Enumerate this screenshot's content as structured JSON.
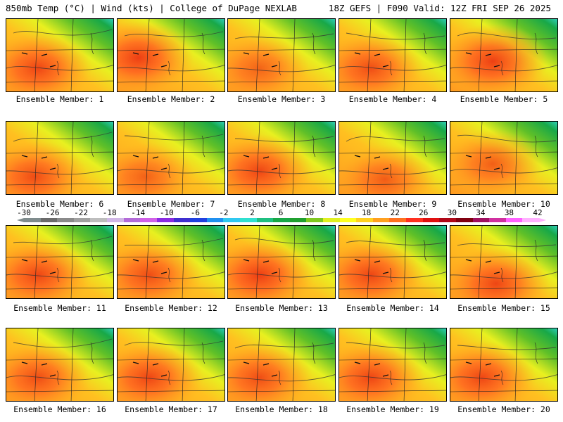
{
  "header": {
    "left": "850mb Temp (°C) | Wind (kts) | College of DuPage NEXLAB",
    "right": "18Z GEFS | F090 Valid: 12Z FRI SEP 26 2025"
  },
  "panels": [
    {
      "label": "Ensemble Member: 1",
      "hot": "west",
      "warmth": 0.75
    },
    {
      "label": "Ensemble Member: 2",
      "hot": "northwest",
      "warmth": 0.8
    },
    {
      "label": "Ensemble Member: 3",
      "hot": "west",
      "warmth": 0.55
    },
    {
      "label": "Ensemble Member: 4",
      "hot": "west",
      "warmth": 0.7
    },
    {
      "label": "Ensemble Member: 5",
      "hot": "center",
      "warmth": 0.8
    },
    {
      "label": "Ensemble Member: 6",
      "hot": "southwest",
      "warmth": 0.7
    },
    {
      "label": "Ensemble Member: 7",
      "hot": "southwest",
      "warmth": 0.55
    },
    {
      "label": "Ensemble Member: 8",
      "hot": "west",
      "warmth": 0.75
    },
    {
      "label": "Ensemble Member: 9",
      "hot": "south",
      "warmth": 0.6
    },
    {
      "label": "Ensemble Member: 10",
      "hot": "center",
      "warmth": 0.6
    },
    {
      "label": "Ensemble Member: 11",
      "hot": "west",
      "warmth": 0.75
    },
    {
      "label": "Ensemble Member: 12",
      "hot": "west",
      "warmth": 0.7
    },
    {
      "label": "Ensemble Member: 13",
      "hot": "west",
      "warmth": 0.8
    },
    {
      "label": "Ensemble Member: 14",
      "hot": "west",
      "warmth": 0.75
    },
    {
      "label": "Ensemble Member: 15",
      "hot": "south",
      "warmth": 0.75
    },
    {
      "label": "Ensemble Member: 16",
      "hot": "west",
      "warmth": 0.7
    },
    {
      "label": "Ensemble Member: 17",
      "hot": "west",
      "warmth": 0.75
    },
    {
      "label": "Ensemble Member: 18",
      "hot": "west",
      "warmth": 0.7
    },
    {
      "label": "Ensemble Member: 19",
      "hot": "west",
      "warmth": 0.75
    },
    {
      "label": "Ensemble Member: 20",
      "hot": "west",
      "warmth": 0.75
    }
  ],
  "colorbar": {
    "labels": [
      "-30",
      "-26",
      "-22",
      "-18",
      "-14",
      "-10",
      "-6",
      "-2",
      "2",
      "6",
      "10",
      "14",
      "18",
      "22",
      "26",
      "30",
      "34",
      "38",
      "42"
    ],
    "colors": [
      "#7f8c8d",
      "#6b6b6b",
      "#8a8a8a",
      "#a0a0a0",
      "#bdbdbd",
      "#d0b6e6",
      "#b36bd8",
      "#d060e8",
      "#8a2be2",
      "#3f2fd0",
      "#2040e0",
      "#2090f0",
      "#30c8f0",
      "#30e0d0",
      "#1fbf80",
      "#18a848",
      "#20a030",
      "#80c820",
      "#e0f020",
      "#ffff20",
      "#ffd020",
      "#ffa020",
      "#ff7020",
      "#ff3020",
      "#e01010",
      "#b00818",
      "#800010",
      "#a01060",
      "#d030a0",
      "#ff60ff",
      "#ffb0ff"
    ]
  }
}
